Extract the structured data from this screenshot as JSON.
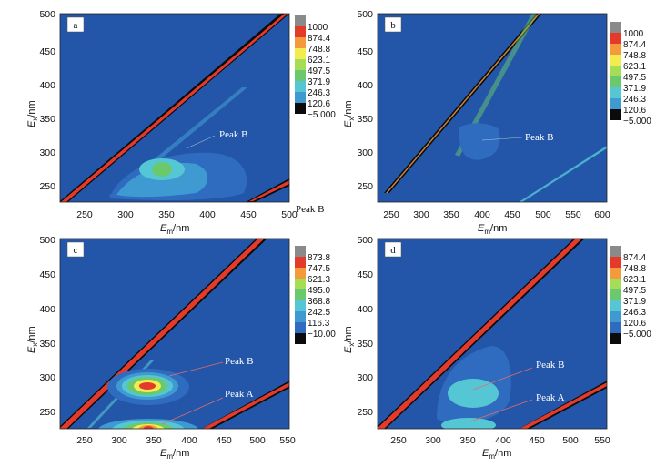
{
  "colors": {
    "background": "#2356a8",
    "level_0": "#0b0b0b",
    "level_1": "#2f6cc0",
    "level_2": "#3f9ad2",
    "level_3": "#55c7d4",
    "level_4": "#6cc86c",
    "level_5": "#a5dd56",
    "level_6": "#f2ec4e",
    "level_7": "#f39a3a",
    "level_8": "#e33a2c",
    "level_9": "#8a8a8a"
  },
  "panels": [
    {
      "label": "a",
      "xlabel": "Em",
      "xlabel_sub": "m",
      "xunit": "/nm",
      "ylabel": "Ex",
      "ylabel_sub": "x",
      "yunit": "/nm",
      "x_ticks": [
        "250",
        "300",
        "350",
        "400",
        "450",
        "500"
      ],
      "y_ticks": [
        "250",
        "300",
        "350",
        "400",
        "450",
        "500"
      ],
      "colorbar": [
        "1000",
        "874.4",
        "748.8",
        "623.1",
        "497.5",
        "371.9",
        "246.3",
        "120.6",
        "−5.000"
      ],
      "annotations": [
        "Peak B"
      ],
      "outside_annotation": "Peak B"
    },
    {
      "label": "b",
      "xlabel": "Em",
      "xlabel_sub": "m",
      "xunit": "/nm",
      "ylabel": "Ex",
      "ylabel_sub": "x",
      "yunit": "/nm",
      "x_ticks": [
        "250",
        "300",
        "350",
        "400",
        "450",
        "500",
        "550",
        "600"
      ],
      "y_ticks": [
        "250",
        "300",
        "350",
        "400",
        "450",
        "500"
      ],
      "colorbar": [
        "1000",
        "874.4",
        "748.8",
        "623.1",
        "497.5",
        "371.9",
        "246.3",
        "120.6",
        "−5.000"
      ],
      "annotations": [
        "Peak B"
      ]
    },
    {
      "label": "c",
      "xlabel": "Em",
      "xlabel_sub": "m",
      "xunit": "/nm",
      "ylabel": "Ex",
      "ylabel_sub": "x",
      "yunit": "/nm",
      "x_ticks": [
        "250",
        "300",
        "350",
        "400",
        "450",
        "500",
        "550"
      ],
      "y_ticks": [
        "250",
        "300",
        "350",
        "400",
        "450",
        "500"
      ],
      "colorbar": [
        "873.8",
        "747.5",
        "621.3",
        "495.0",
        "368.8",
        "242.5",
        "116.3",
        "−10.00"
      ],
      "annotations": [
        "Peak B",
        "Peak A"
      ]
    },
    {
      "label": "d",
      "xlabel": "Em",
      "xlabel_sub": "m",
      "xunit": "/nm",
      "ylabel": "Ex",
      "ylabel_sub": "x",
      "yunit": "/nm",
      "x_ticks": [
        "250",
        "300",
        "350",
        "400",
        "450",
        "500",
        "550"
      ],
      "y_ticks": [
        "250",
        "300",
        "350",
        "400",
        "450",
        "500"
      ],
      "colorbar": [
        "874.4",
        "748.8",
        "623.1",
        "497.5",
        "371.9",
        "246.3",
        "120.6",
        "−5.000"
      ],
      "annotations": [
        "Peak B",
        "Peak A"
      ]
    }
  ],
  "chart_data": [
    {
      "type": "heatmap",
      "panel": "a",
      "xlim": [
        220,
        500
      ],
      "ylim": [
        220,
        500
      ],
      "peaks": [
        {
          "name": "Peak B",
          "ex": 280,
          "em": 345,
          "intensity": 500
        }
      ],
      "levels": [
        1000,
        874.4,
        748.8,
        623.1,
        497.5,
        371.9,
        246.3,
        120.6,
        -5.0
      ]
    },
    {
      "type": "heatmap",
      "panel": "b",
      "xlim": [
        220,
        600
      ],
      "ylim": [
        220,
        500
      ],
      "peaks": [
        {
          "name": "Peak B",
          "ex": 310,
          "em": 390,
          "intensity": 200
        }
      ],
      "levels": [
        1000,
        874.4,
        748.8,
        623.1,
        497.5,
        371.9,
        246.3,
        120.6,
        -5.0
      ]
    },
    {
      "type": "heatmap",
      "panel": "c",
      "xlim": [
        220,
        550
      ],
      "ylim": [
        220,
        500
      ],
      "peaks": [
        {
          "name": "Peak B",
          "ex": 285,
          "em": 345,
          "intensity": 800
        },
        {
          "name": "Peak A",
          "ex": 225,
          "em": 345,
          "intensity": 870
        }
      ],
      "levels": [
        873.8,
        747.5,
        621.3,
        495.0,
        368.8,
        242.5,
        116.3,
        -10.0
      ]
    },
    {
      "type": "heatmap",
      "panel": "d",
      "xlim": [
        220,
        550
      ],
      "ylim": [
        220,
        500
      ],
      "peaks": [
        {
          "name": "Peak B",
          "ex": 290,
          "em": 350,
          "intensity": 370
        },
        {
          "name": "Peak A",
          "ex": 225,
          "em": 350,
          "intensity": 330
        }
      ],
      "levels": [
        874.4,
        748.8,
        623.1,
        497.5,
        371.9,
        246.3,
        120.6,
        -5.0
      ]
    }
  ]
}
